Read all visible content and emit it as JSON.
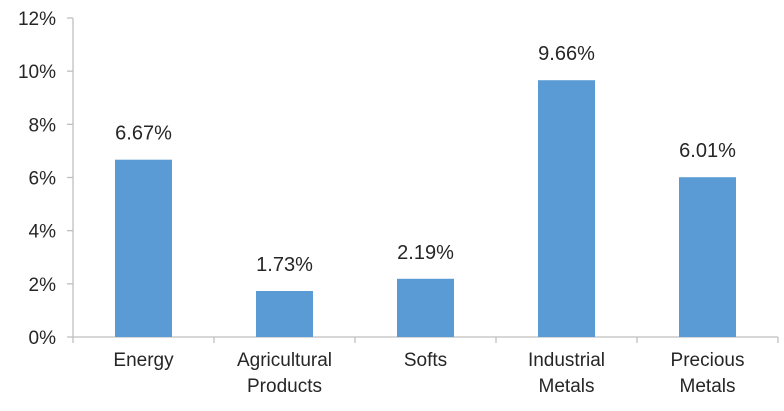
{
  "chart_data": {
    "type": "bar",
    "categories": [
      [
        "Energy"
      ],
      [
        "Agricultural",
        "Products"
      ],
      [
        "Softs"
      ],
      [
        "Industrial",
        "Metals"
      ],
      [
        "Precious",
        "Metals"
      ]
    ],
    "values": [
      6.67,
      1.73,
      2.19,
      9.66,
      6.01
    ],
    "data_labels": [
      "6.67%",
      "1.73%",
      "2.19%",
      "9.66%",
      "6.01%"
    ],
    "yticks": [
      "0%",
      "2%",
      "4%",
      "6%",
      "8%",
      "10%",
      "12%"
    ],
    "ylim": [
      0,
      12
    ],
    "ystep": 2,
    "bar_color": "#5B9BD5",
    "axis_color": "#BFBFBF",
    "grid": false,
    "legend": "none"
  }
}
